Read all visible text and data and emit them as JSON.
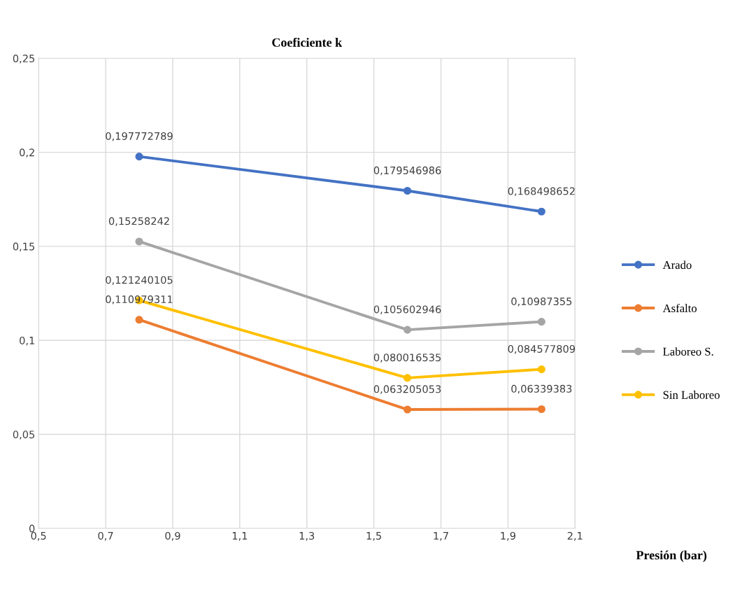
{
  "chart_data": {
    "type": "line",
    "title": "Coeficiente k",
    "xlabel": "Presión (bar)",
    "x": [
      0.8,
      1.6,
      2.0
    ],
    "xlim": [
      0.5,
      2.1
    ],
    "xticks": [
      {
        "value": 0.5,
        "label": "0,5"
      },
      {
        "value": 0.7,
        "label": "0,7"
      },
      {
        "value": 0.9,
        "label": "0,9"
      },
      {
        "value": 1.1,
        "label": "1,1"
      },
      {
        "value": 1.3,
        "label": "1,3"
      },
      {
        "value": 1.5,
        "label": "1,5"
      },
      {
        "value": 1.7,
        "label": "1,7"
      },
      {
        "value": 1.9,
        "label": "1,9"
      },
      {
        "value": 2.1,
        "label": "2,1"
      }
    ],
    "ylim": [
      0,
      0.25
    ],
    "yticks": [
      0,
      {
        "value": 0.05,
        "label": "0,05"
      },
      {
        "value": 0.1,
        "label": "0,1"
      },
      {
        "value": 0.15,
        "label": "0,15"
      },
      {
        "value": 0.2,
        "label": "0,2"
      },
      {
        "value": 0.25,
        "label": "0,25"
      }
    ],
    "series": [
      {
        "name": "Arado",
        "color": "#4472c4",
        "values": [
          0.197772789,
          0.179546986,
          0.168498652
        ],
        "value_labels": [
          "0,197772789",
          "0,179546986",
          "0,168498652"
        ]
      },
      {
        "name": "Asfalto",
        "color": "#ed7d31",
        "values": [
          0.110979311,
          0.063205053,
          0.06339383
        ],
        "value_labels": [
          "0,110979311",
          "0,063205053",
          "0,06339383"
        ]
      },
      {
        "name": "Laboreo S.",
        "color": "#a5a5a5",
        "values": [
          0.15258242,
          0.105602946,
          0.10987355
        ],
        "value_labels": [
          "0,15258242",
          "0,105602946",
          "0,10987355"
        ]
      },
      {
        "name": "Sin Laboreo",
        "color": "#ffc000",
        "values": [
          0.121240105,
          0.080016535,
          0.084577809
        ],
        "value_labels": [
          "0,121240105",
          "0,080016535",
          "0,084577809"
        ]
      }
    ],
    "grid": true,
    "legend": "right",
    "marker": "circle",
    "line_style": "solid"
  }
}
